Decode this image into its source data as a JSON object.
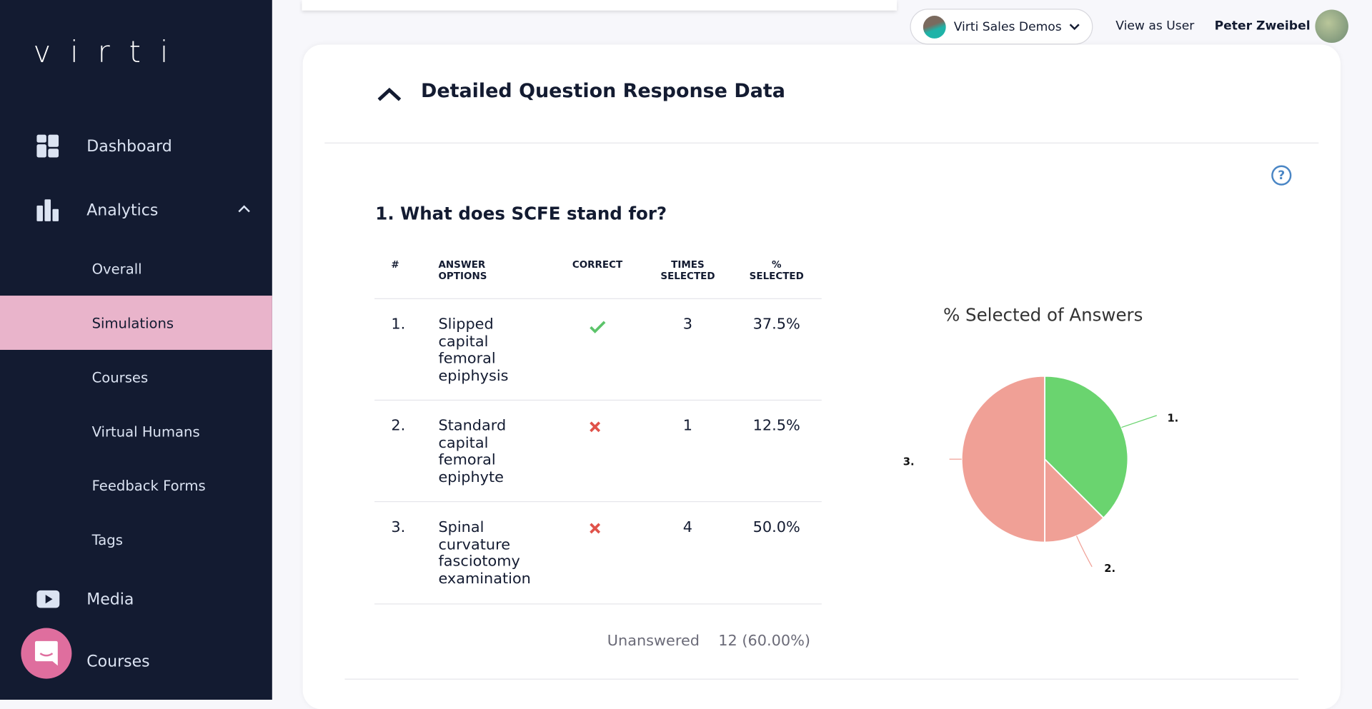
{
  "sidebar": {
    "logo": "virti",
    "items": [
      {
        "label": "Dashboard",
        "icon": "dashboard-icon"
      },
      {
        "label": "Analytics",
        "icon": "bar-chart-icon"
      },
      {
        "label": "Media",
        "icon": "play-icon"
      },
      {
        "label": "Courses",
        "icon": "courses-icon"
      }
    ],
    "analytics_sub": [
      "Overall",
      "Simulations",
      "Courses",
      "Virtual Humans",
      "Feedback Forms",
      "Tags"
    ],
    "active": "Simulations"
  },
  "header": {
    "org": "Virti Sales Demos",
    "view_as": "View as User",
    "user": "Peter Zweibel"
  },
  "section": {
    "title": "Detailed Question Response Data",
    "help": "?"
  },
  "question": {
    "title": "1. What does SCFE stand for?",
    "columns": [
      "#",
      "ANSWER OPTIONS",
      "CORRECT",
      "TIMES SELECTED",
      "% SELECTED"
    ],
    "rows": [
      {
        "num": "1.",
        "answer": "Slipped capital femoral epiphysis",
        "correct": true,
        "times": "3",
        "pct": "37.5%"
      },
      {
        "num": "2.",
        "answer": "Standard capital femoral epiphyte",
        "correct": false,
        "times": "1",
        "pct": "12.5%"
      },
      {
        "num": "3.",
        "answer": "Spinal curvature fasciotomy examination",
        "correct": false,
        "times": "4",
        "pct": "50.0%"
      }
    ],
    "unanswered_label": "Unanswered",
    "unanswered_value": "12 (60.00%)"
  },
  "chart_data": {
    "type": "pie",
    "title": "% Selected of Answers",
    "labels": [
      "1.",
      "2.",
      "3."
    ],
    "values": [
      37.5,
      12.5,
      50.0
    ],
    "colors": [
      "#6ad46f",
      "#f0a096",
      "#f0a096"
    ]
  },
  "colors": {
    "sidebar": "#131b31",
    "active": "#e9b4cb",
    "correct": "#5cc46a",
    "wrong": "#e0524a"
  }
}
